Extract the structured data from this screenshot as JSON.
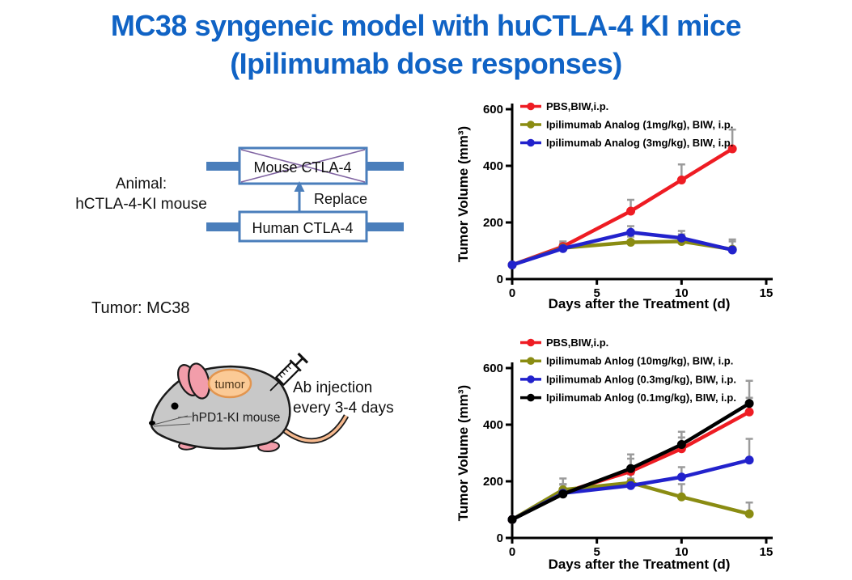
{
  "slide": {
    "title_line1": "MC38 syngeneic model with huCTLA-4 KI mice",
    "title_line2": "(Ipilimumab dose responses)",
    "title_color": "#1063c5"
  },
  "left_panel": {
    "animal_line1": "Animal:",
    "animal_line2": "hCTLA-4-KI mouse",
    "gene_diagram": {
      "top_box_label": "Mouse CTLA-4",
      "bottom_box_label": "Human CTLA-4",
      "arrow_label": "Replace",
      "bar_color": "#4a7ebb",
      "cross_color": "#8064a2"
    },
    "tumor_line": "Tumor: MC38",
    "mouse_figure": {
      "tumor_tag": "tumor",
      "body_tag": "hPD1-KI mouse",
      "note_line1": "Ab injection",
      "note_line2": "every 3-4 days"
    }
  },
  "chart_data": [
    {
      "type": "line",
      "title": "",
      "xlabel": "Days after the Treatment (d)",
      "ylabel": "Tumor Volume (mm³)",
      "xlim": [
        0,
        15
      ],
      "ylim": [
        0,
        600
      ],
      "xticks": [
        0,
        5,
        10,
        15
      ],
      "yticks": [
        0,
        200,
        400,
        600
      ],
      "x": [
        0,
        3,
        7,
        10,
        13
      ],
      "grid": false,
      "legend_position": "top-left-inside",
      "error_color": "#9b9b9b",
      "series": [
        {
          "name": "PBS,BIW,i.p.",
          "color": "#ee1c23",
          "values": [
            50,
            115,
            240,
            350,
            460
          ],
          "errors": [
            0,
            18,
            40,
            55,
            68
          ]
        },
        {
          "name": "Ipilimumab Analog (1mg/kg), BIW, i.p.",
          "color": "#8a8c12",
          "values": [
            50,
            110,
            130,
            133,
            105
          ],
          "errors": [
            0,
            15,
            20,
            25,
            35
          ]
        },
        {
          "name": "Ipilimumab Analog (3mg/kg), BIW, i.p.",
          "color": "#2222cc",
          "values": [
            50,
            108,
            165,
            145,
            103
          ],
          "errors": [
            0,
            18,
            22,
            25,
            30
          ]
        }
      ]
    },
    {
      "type": "line",
      "title": "",
      "xlabel": "Days after the Treatment (d)",
      "ylabel": "Tumor Volume (mm³)",
      "xlim": [
        0,
        15
      ],
      "ylim": [
        0,
        600
      ],
      "xticks": [
        0,
        5,
        10,
        15
      ],
      "yticks": [
        0,
        200,
        400,
        600
      ],
      "x": [
        0,
        3,
        7,
        10,
        14
      ],
      "grid": false,
      "legend_position": "top-left-inside",
      "error_color": "#9b9b9b",
      "series": [
        {
          "name": "PBS,BIW,i.p.",
          "color": "#ee1c23",
          "values": [
            65,
            160,
            235,
            315,
            445
          ],
          "errors": [
            0,
            30,
            45,
            40,
            50
          ]
        },
        {
          "name": "Ipilimumab Anlog (10mg/kg), BIW, i.p.",
          "color": "#8a8c12",
          "values": [
            65,
            170,
            195,
            145,
            85
          ],
          "errors": [
            0,
            40,
            30,
            45,
            40
          ]
        },
        {
          "name": "Ipilimumab Anlog (0.3mg/kg), BIW, i.p.",
          "color": "#2222cc",
          "values": [
            65,
            158,
            185,
            215,
            275
          ],
          "errors": [
            0,
            30,
            25,
            35,
            75
          ]
        },
        {
          "name": "Ipilimumab Anlog (0.1mg/kg), BIW, i.p.",
          "color": "#000000",
          "values": [
            65,
            155,
            245,
            330,
            475
          ],
          "errors": [
            0,
            35,
            50,
            45,
            80
          ]
        }
      ]
    }
  ]
}
